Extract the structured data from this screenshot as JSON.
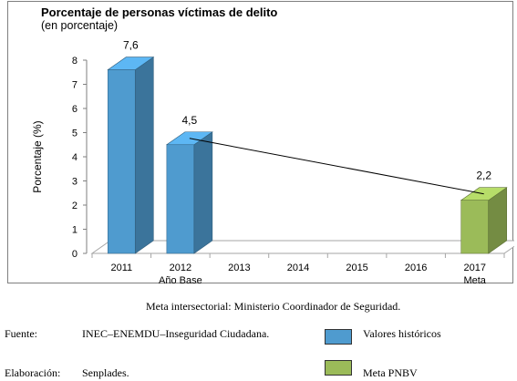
{
  "chart_data": {
    "type": "bar",
    "title": "Porcentaje de personas víctimas de delito",
    "subtitle": "(en porcentaje)",
    "ylabel": "Porcentaje (%)",
    "ylim": [
      0,
      8
    ],
    "yticks": [
      0,
      1,
      2,
      3,
      4,
      5,
      6,
      7,
      8
    ],
    "categories": [
      "2011",
      "2012",
      "2013",
      "2014",
      "2015",
      "2016",
      "2017"
    ],
    "category_sublabels": [
      "",
      "Año Base",
      "",
      "",
      "",
      "",
      "Meta"
    ],
    "series": [
      {
        "name": "Valores históricos",
        "color": "#4f9bcf",
        "values": [
          7.6,
          4.5,
          null,
          null,
          null,
          null,
          null
        ]
      },
      {
        "name": "Meta PNBV",
        "color": "#9bbb59",
        "values": [
          null,
          null,
          null,
          null,
          null,
          null,
          2.2
        ]
      }
    ],
    "data_labels": [
      "7,6",
      "4,5",
      "",
      "",
      "",
      "",
      "2,2"
    ],
    "trend_line": {
      "from_category": "2012",
      "to_category": "2017",
      "from_value": 4.5,
      "to_value": 2.2
    },
    "grid": false
  },
  "footnote": {
    "text": "Meta intersectorial: Ministerio Coordinador de Seguridad.",
    "fuente_label": "Fuente:",
    "fuente_value": "INEC–ENEMDU–Inseguridad Ciudadana.",
    "elaboracion_label": "Elaboración:",
    "elaboracion_value": "Senplades."
  },
  "legend": [
    {
      "label": "Valores históricos",
      "color": "#4f9bcf"
    },
    {
      "label": "Meta PNBV",
      "color": "#9bbb59"
    }
  ]
}
